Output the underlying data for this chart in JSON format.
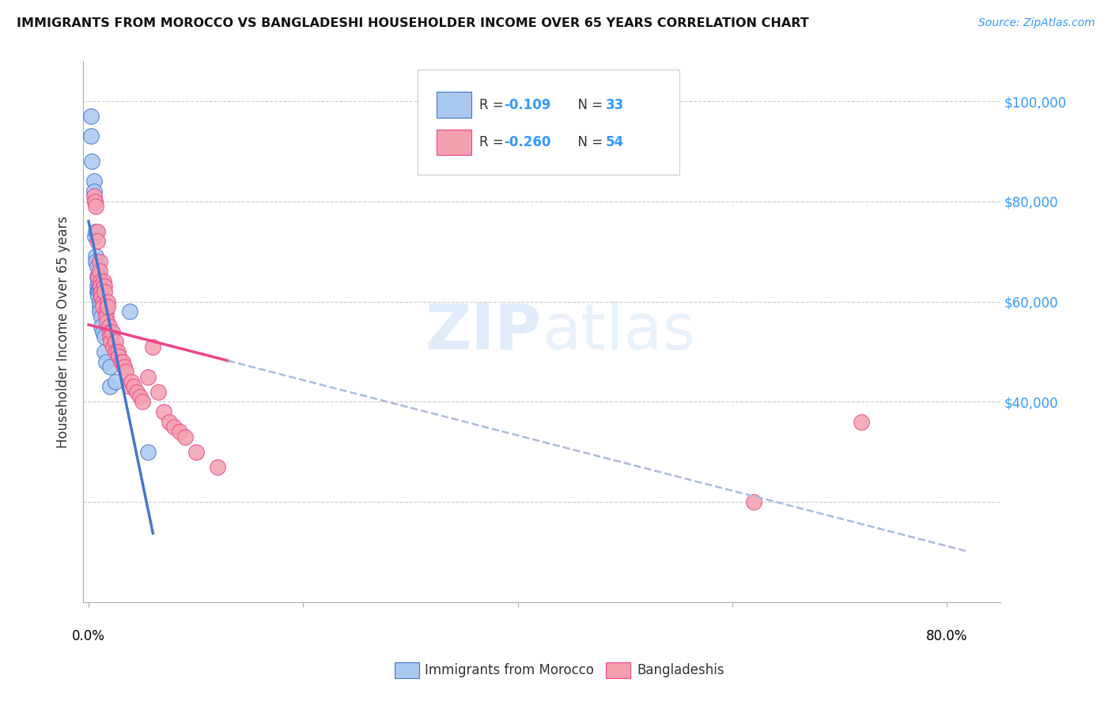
{
  "title": "IMMIGRANTS FROM MOROCCO VS BANGLADESHI HOUSEHOLDER INCOME OVER 65 YEARS CORRELATION CHART",
  "source": "Source: ZipAtlas.com",
  "ylabel": "Householder Income Over 65 years",
  "legend_label1": "Immigrants from Morocco",
  "legend_label2": "Bangladeshis",
  "r1": "-0.109",
  "n1": "33",
  "r2": "-0.260",
  "n2": "54",
  "color_morocco": "#a8c8f0",
  "color_bangladesh": "#f4a0b0",
  "color_morocco_line": "#4477cc",
  "color_bangladesh_line": "#ee4488",
  "color_dashed": "#aabbdd",
  "ylim_min": 0,
  "ylim_max": 108000,
  "xlim_min": -0.5,
  "xlim_max": 85,
  "morocco_x": [
    0.2,
    0.2,
    0.3,
    0.5,
    0.5,
    0.6,
    0.6,
    0.7,
    0.7,
    0.7,
    0.8,
    0.8,
    0.8,
    0.8,
    0.9,
    0.9,
    0.9,
    1.0,
    1.0,
    1.0,
    1.0,
    1.0,
    1.2,
    1.2,
    1.3,
    1.5,
    1.5,
    1.6,
    2.0,
    2.0,
    2.5,
    3.8,
    5.5
  ],
  "morocco_y": [
    97000,
    93000,
    88000,
    84000,
    82000,
    80000,
    73000,
    74000,
    69000,
    68000,
    67000,
    65000,
    63000,
    62000,
    64000,
    62000,
    61000,
    63000,
    62000,
    60000,
    59000,
    58000,
    57000,
    55000,
    54000,
    53000,
    50000,
    48000,
    47000,
    43000,
    44000,
    58000,
    30000
  ],
  "bangladesh_x": [
    0.5,
    0.6,
    0.7,
    0.8,
    0.8,
    0.9,
    1.0,
    1.0,
    1.1,
    1.1,
    1.2,
    1.2,
    1.3,
    1.3,
    1.4,
    1.5,
    1.5,
    1.6,
    1.6,
    1.7,
    1.8,
    1.8,
    1.9,
    2.0,
    2.0,
    2.1,
    2.2,
    2.3,
    2.5,
    2.5,
    2.7,
    2.8,
    3.0,
    3.2,
    3.3,
    3.5,
    3.8,
    4.0,
    4.2,
    4.5,
    4.8,
    5.0,
    5.5,
    6.0,
    6.5,
    7.0,
    7.5,
    8.0,
    8.5,
    9.0,
    10.0,
    12.0,
    62.0,
    72.0
  ],
  "bangladesh_y": [
    81000,
    80000,
    79000,
    74000,
    72000,
    65000,
    68000,
    66000,
    64000,
    63000,
    62000,
    61000,
    60000,
    59000,
    64000,
    63000,
    62000,
    58000,
    57000,
    56000,
    60000,
    59000,
    55000,
    54000,
    53000,
    52000,
    54000,
    51000,
    52000,
    50000,
    50000,
    49000,
    48000,
    48000,
    47000,
    46000,
    43000,
    44000,
    43000,
    42000,
    41000,
    40000,
    45000,
    51000,
    42000,
    38000,
    36000,
    35000,
    34000,
    33000,
    30000,
    27000,
    20000,
    36000
  ]
}
